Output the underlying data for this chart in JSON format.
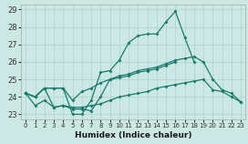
{
  "xlabel": "Humidex (Indice chaleur)",
  "xlim": [
    -0.5,
    23.5
  ],
  "ylim": [
    22.7,
    29.3
  ],
  "yticks": [
    23,
    24,
    25,
    26,
    27,
    28,
    29
  ],
  "xticks": [
    0,
    1,
    2,
    3,
    4,
    5,
    6,
    7,
    8,
    9,
    10,
    11,
    12,
    13,
    14,
    15,
    16,
    17,
    18,
    19,
    20,
    21,
    22,
    23
  ],
  "bg_color": "#cce8e4",
  "grid_color": "#aad4cc",
  "line_color": "#1a7a6e",
  "lines": [
    [
      24.2,
      24.0,
      24.5,
      24.5,
      24.5,
      23.0,
      23.0,
      23.8,
      25.4,
      25.5,
      26.1,
      27.1,
      27.5,
      27.6,
      27.6,
      28.3,
      28.9,
      27.4,
      26.0,
      null,
      null,
      null,
      null,
      null
    ],
    [
      24.2,
      24.0,
      24.5,
      24.5,
      24.5,
      23.8,
      24.3,
      24.5,
      24.8,
      25.0,
      25.2,
      25.3,
      25.5,
      25.6,
      25.7,
      25.9,
      26.1,
      26.2,
      26.3,
      26.0,
      25.0,
      24.4,
      24.2,
      23.7
    ],
    [
      24.2,
      24.0,
      24.5,
      23.4,
      23.5,
      23.3,
      23.3,
      23.2,
      24.0,
      25.0,
      25.1,
      25.2,
      25.4,
      25.5,
      25.6,
      25.8,
      26.0,
      null,
      null,
      null,
      null,
      null,
      null,
      null
    ],
    [
      24.2,
      23.5,
      23.8,
      23.4,
      23.5,
      23.4,
      23.4,
      23.5,
      23.6,
      23.8,
      24.0,
      24.1,
      24.2,
      24.3,
      24.5,
      24.6,
      24.7,
      24.8,
      24.9,
      25.0,
      24.4,
      24.3,
      24.0,
      23.7
    ]
  ]
}
